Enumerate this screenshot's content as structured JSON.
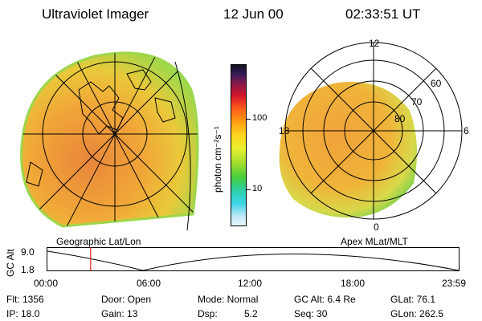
{
  "header": {
    "title": "Ultraviolet Imager",
    "date": "12 Jun 00",
    "time": "02:33:51 UT"
  },
  "colorbar": {
    "title": "photon cm⁻²s⁻¹",
    "ticks": [
      "100",
      "10"
    ]
  },
  "left_panel": {
    "label": "Geographic Lat/Lon"
  },
  "right_panel": {
    "label": "Apex MLat/MLT",
    "mlt_labels": {
      "top": "12",
      "left": "18",
      "right": "6",
      "bottom": "0"
    },
    "lat_labels": [
      "60",
      "70",
      "80"
    ]
  },
  "altitude_plot": {
    "ylabel": "GC Alt",
    "yticks": [
      "9.0",
      "1.8"
    ],
    "xticks": [
      "00:00",
      "06:00",
      "12:00",
      "18:00",
      "23:59"
    ],
    "marker_hour": 2.56
  },
  "info": {
    "flt": "Flt: 1356",
    "ip": "IP: 18.0",
    "door": "Door: Open",
    "gain": "Gain: 13",
    "mode": "Mode: Normal",
    "dsp_label": "Dsp:",
    "dsp_value": "5.2",
    "gcalt": "GC Alt: 6.4 Re",
    "seq": "Seq: 30",
    "glat": "GLat: 76.1",
    "glon": "GLon: 262.5"
  },
  "colors": {
    "aurora_core": "#f0a23a",
    "aurora_edge": "#66d34a",
    "red_marker": "#e02020"
  }
}
